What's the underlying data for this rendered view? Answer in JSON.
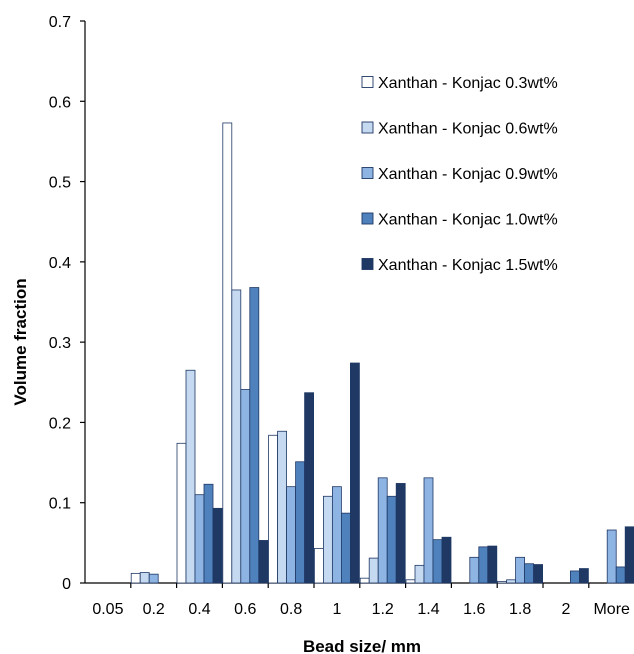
{
  "chart_data": {
    "type": "bar",
    "title": "",
    "xlabel": "Bead size/ mm",
    "ylabel": "Volume fraction",
    "ylim": [
      0,
      0.7
    ],
    "yticks": [
      "0",
      "0.1",
      "0.2",
      "0.3",
      "0.4",
      "0.5",
      "0.6",
      "0.7"
    ],
    "categories": [
      "0.05",
      "0.2",
      "0.4",
      "0.6",
      "0.8",
      "1",
      "1.2",
      "1.4",
      "1.6",
      "1.8",
      "2",
      "More"
    ],
    "legend_position": "top-right",
    "series": [
      {
        "name": "Xanthan - Konjac 0.3wt%",
        "color": "#ffffff",
        "values": [
          0,
          0.012,
          0.174,
          0.573,
          0.184,
          0.043,
          0.006,
          0.004,
          0,
          0.002,
          0,
          0
        ]
      },
      {
        "name": "Xanthan - Konjac 0.6wt%",
        "color": "#c5d9f1",
        "values": [
          0,
          0.013,
          0.265,
          0.365,
          0.189,
          0.108,
          0.031,
          0.022,
          0,
          0.004,
          0,
          0
        ]
      },
      {
        "name": "Xanthan - Konjac 0.9wt%",
        "color": "#8eb4e3",
        "values": [
          0,
          0.011,
          0.11,
          0.241,
          0.12,
          0.12,
          0.131,
          0.131,
          0.032,
          0.032,
          0,
          0.066
        ]
      },
      {
        "name": "Xanthan - Konjac 1.0wt%",
        "color": "#4f81bd",
        "values": [
          0,
          0,
          0.123,
          0.368,
          0.151,
          0.087,
          0.108,
          0.054,
          0.045,
          0.024,
          0.015,
          0.02
        ]
      },
      {
        "name": "Xanthan - Konjac 1.5wt%",
        "color": "#1f3864",
        "values": [
          0,
          0,
          0.093,
          0.053,
          0.237,
          0.274,
          0.124,
          0.057,
          0.046,
          0.023,
          0.018,
          0.07
        ]
      }
    ]
  }
}
